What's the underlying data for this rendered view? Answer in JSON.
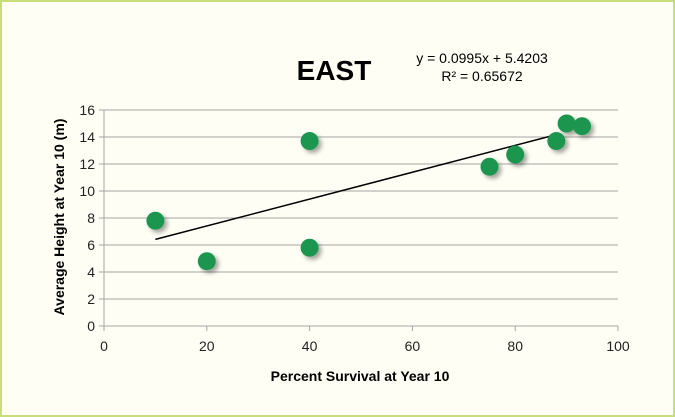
{
  "chart_data": {
    "type": "scatter",
    "title": "EAST",
    "xlabel": "Percent Survival at Year 10",
    "ylabel": "Average Height at Year 10 (m)",
    "xlim": [
      0,
      100
    ],
    "ylim": [
      0,
      16
    ],
    "x_ticks": [
      "0",
      "20",
      "40",
      "60",
      "80",
      "100"
    ],
    "y_ticks": [
      "0",
      "2",
      "4",
      "6",
      "8",
      "10",
      "12",
      "14",
      "16"
    ],
    "grid": "horizontal",
    "legend": "none",
    "series": [
      {
        "points": [
          {
            "x": 10,
            "y": 7.8
          },
          {
            "x": 20,
            "y": 4.8
          },
          {
            "x": 40,
            "y": 13.7
          },
          {
            "x": 40,
            "y": 5.8
          },
          {
            "x": 75,
            "y": 11.8
          },
          {
            "x": 80,
            "y": 12.7
          },
          {
            "x": 88,
            "y": 13.7
          },
          {
            "x": 90,
            "y": 15.0
          },
          {
            "x": 93,
            "y": 14.8
          }
        ]
      }
    ],
    "trendline": {
      "type": "linear",
      "slope": 0.0995,
      "intercept": 5.4203,
      "x_range": [
        10,
        88
      ],
      "equation_text": "y = 0.0995x + 5.4203",
      "r2_text": "R² = 0.65672"
    },
    "colors": {
      "point": "#1e9650",
      "line": "#000000",
      "grid": "#a6a6a6",
      "frame_border": "#c7de7a",
      "background": "#fefef4"
    }
  }
}
